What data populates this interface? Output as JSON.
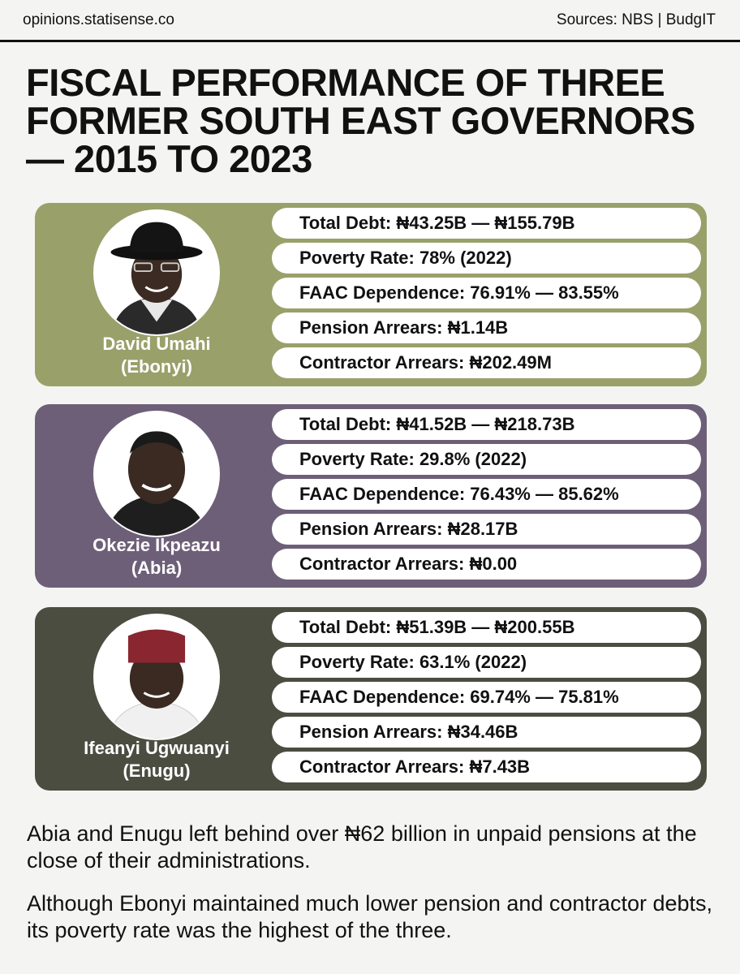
{
  "header": {
    "site": "opinions.statisense.co",
    "sources": "Sources: NBS | BudgIT"
  },
  "title": {
    "line1": "FISCAL PERFORMANCE OF THREE",
    "line2": "FORMER SOUTH EAST GOVERNORS",
    "line3": "— 2015 TO 2023"
  },
  "governors": [
    {
      "name": "David Umahi",
      "state": "(Ebonyi)",
      "panel_color": "#9aa06a",
      "stats": [
        "Total Debt: ₦43.25B — ₦155.79B",
        "Poverty Rate: 78% (2022)",
        "FAAC Dependence: 76.91% — 83.55%",
        "Pension Arrears: ₦1.14B",
        "Contractor Arrears: ₦202.49M"
      ]
    },
    {
      "name": "Okezie Ikpeazu",
      "state": "(Abia)",
      "panel_color": "#6e5f78",
      "stats": [
        "Total Debt: ₦41.52B — ₦218.73B",
        "Poverty Rate: 29.8% (2022)",
        "FAAC Dependence: 76.43% — 85.62%",
        "Pension Arrears: ₦28.17B",
        "Contractor Arrears: ₦0.00"
      ]
    },
    {
      "name": "Ifeanyi Ugwuanyi",
      "state": "(Enugu)",
      "panel_color": "#4b4d41",
      "stats": [
        "Total Debt: ₦51.39B — ₦200.55B",
        "Poverty Rate: 63.1% (2022)",
        "FAAC Dependence: 69.74% — 75.81%",
        "Pension Arrears: ₦34.46B",
        "Contractor Arrears: ₦7.43B"
      ]
    }
  ],
  "paragraphs": [
    "Abia and Enugu left behind over ₦62 billion in unpaid pensions at the close of their administrations.",
    "Although Ebonyi maintained much lower pension and contractor debts, its poverty rate was the highest of the three."
  ]
}
